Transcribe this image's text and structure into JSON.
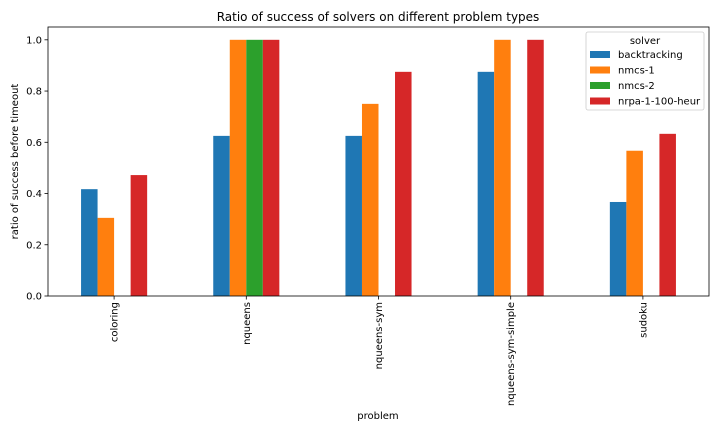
{
  "chart_data": {
    "type": "bar",
    "title": "Ratio of success of solvers on different problem types",
    "xlabel": "problem",
    "ylabel": "ratio of success before timeout",
    "categories": [
      "coloring",
      "nqueens",
      "nqueens-sym",
      "nqueens-sym-simple",
      "sudoku"
    ],
    "ylim": [
      0,
      1.05
    ],
    "yticks": [
      "0.0",
      "0.2",
      "0.4",
      "0.6",
      "0.8",
      "1.0"
    ],
    "legend": {
      "title": "solver",
      "position": "top-right"
    },
    "grid": false,
    "series": [
      {
        "name": "backtracking",
        "color": "#1f77b4",
        "values": [
          0.417,
          0.625,
          0.625,
          0.875,
          0.367
        ]
      },
      {
        "name": "nmcs-1",
        "color": "#ff7f0e",
        "values": [
          0.305,
          1.0,
          0.75,
          1.0,
          0.567
        ]
      },
      {
        "name": "nmcs-2",
        "color": "#2ca02c",
        "values": [
          null,
          1.0,
          null,
          null,
          null
        ]
      },
      {
        "name": "nrpa-1-100-heur",
        "color": "#d62728",
        "values": [
          0.472,
          1.0,
          0.875,
          1.0,
          0.633
        ]
      }
    ]
  }
}
